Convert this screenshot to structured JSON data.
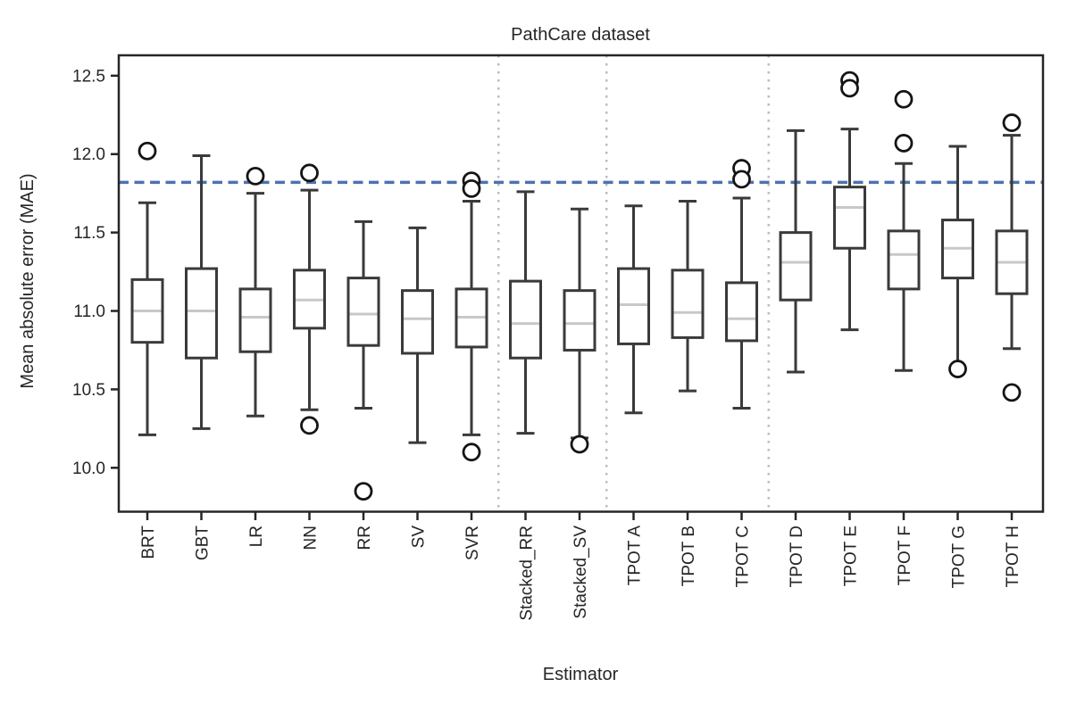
{
  "figure": {
    "title": "PathCare dataset",
    "xlabel": "Estimator",
    "ylabel": "Mean absolute error (MAE)"
  },
  "chart_data": {
    "type": "box",
    "title": "PathCare dataset",
    "xlabel": "Estimator",
    "ylabel": "Mean absolute error (MAE)",
    "ylim": [
      9.72,
      12.63
    ],
    "yticks": [
      10.0,
      10.5,
      11.0,
      11.5,
      12.0,
      12.5
    ],
    "grid": false,
    "legend": null,
    "reference_line": {
      "value": 11.82,
      "style": "dashed",
      "color": "#4C72B0"
    },
    "separator_style": "dotted",
    "separator_after_indices": [
      6,
      8,
      11
    ],
    "categories": [
      "BRT",
      "GBT",
      "LR",
      "NN",
      "RR",
      "SV",
      "SVR",
      "Stacked_RR",
      "Stacked_SV",
      "TPOT A",
      "TPOT B",
      "TPOT C",
      "TPOT D",
      "TPOT E",
      "TPOT F",
      "TPOT G",
      "TPOT H"
    ],
    "boxes": [
      {
        "label": "BRT",
        "whislo": 10.21,
        "q1": 10.8,
        "med": 11.0,
        "q3": 11.2,
        "whishi": 11.69,
        "outliers": [
          12.02
        ]
      },
      {
        "label": "GBT",
        "whislo": 10.25,
        "q1": 10.7,
        "med": 11.0,
        "q3": 11.27,
        "whishi": 11.99,
        "outliers": []
      },
      {
        "label": "LR",
        "whislo": 10.33,
        "q1": 10.74,
        "med": 10.96,
        "q3": 11.14,
        "whishi": 11.75,
        "outliers": [
          11.86
        ]
      },
      {
        "label": "NN",
        "whislo": 10.37,
        "q1": 10.89,
        "med": 11.07,
        "q3": 11.26,
        "whishi": 11.77,
        "outliers": [
          11.88,
          10.27
        ]
      },
      {
        "label": "RR",
        "whislo": 10.38,
        "q1": 10.78,
        "med": 10.98,
        "q3": 11.21,
        "whishi": 11.57,
        "outliers": [
          9.85
        ]
      },
      {
        "label": "SV",
        "whislo": 10.16,
        "q1": 10.73,
        "med": 10.95,
        "q3": 11.13,
        "whishi": 11.53,
        "outliers": []
      },
      {
        "label": "SVR",
        "whislo": 10.21,
        "q1": 10.77,
        "med": 10.96,
        "q3": 11.14,
        "whishi": 11.7,
        "outliers": [
          11.83,
          11.78,
          10.1
        ]
      },
      {
        "label": "Stacked_RR",
        "whislo": 10.22,
        "q1": 10.7,
        "med": 10.92,
        "q3": 11.19,
        "whishi": 11.76,
        "outliers": []
      },
      {
        "label": "Stacked_SV",
        "whislo": 10.19,
        "q1": 10.75,
        "med": 10.92,
        "q3": 11.13,
        "whishi": 11.65,
        "outliers": [
          10.15
        ]
      },
      {
        "label": "TPOT A",
        "whislo": 10.35,
        "q1": 10.79,
        "med": 11.04,
        "q3": 11.27,
        "whishi": 11.67,
        "outliers": []
      },
      {
        "label": "TPOT B",
        "whislo": 10.49,
        "q1": 10.83,
        "med": 10.99,
        "q3": 11.26,
        "whishi": 11.7,
        "outliers": []
      },
      {
        "label": "TPOT C",
        "whislo": 10.38,
        "q1": 10.81,
        "med": 10.95,
        "q3": 11.18,
        "whishi": 11.72,
        "outliers": [
          11.91,
          11.84
        ]
      },
      {
        "label": "TPOT D",
        "whislo": 10.61,
        "q1": 11.07,
        "med": 11.31,
        "q3": 11.5,
        "whishi": 12.15,
        "outliers": []
      },
      {
        "label": "TPOT E",
        "whislo": 10.88,
        "q1": 11.4,
        "med": 11.66,
        "q3": 11.79,
        "whishi": 12.16,
        "outliers": [
          12.47,
          12.42
        ]
      },
      {
        "label": "TPOT F",
        "whislo": 10.62,
        "q1": 11.14,
        "med": 11.36,
        "q3": 11.51,
        "whishi": 11.94,
        "outliers": [
          12.35,
          12.07
        ]
      },
      {
        "label": "TPOT G",
        "whislo": 10.64,
        "q1": 11.21,
        "med": 11.4,
        "q3": 11.58,
        "whishi": 12.05,
        "outliers": [
          10.63
        ]
      },
      {
        "label": "TPOT H",
        "whislo": 10.76,
        "q1": 11.11,
        "med": 11.31,
        "q3": 11.51,
        "whishi": 12.12,
        "outliers": [
          12.2,
          10.48
        ]
      }
    ],
    "colors": {
      "box_edge": "#3A3A3A",
      "box_fill": "#ffffff",
      "median": "#C8C8C8",
      "whisker": "#3A3A3A",
      "outlier_edge": "#141414",
      "outlier_fill": "#ffffff",
      "reference": "#4C72B0",
      "separator": "#BDBDBD",
      "spine": "#262626",
      "tick": "#262626"
    }
  }
}
